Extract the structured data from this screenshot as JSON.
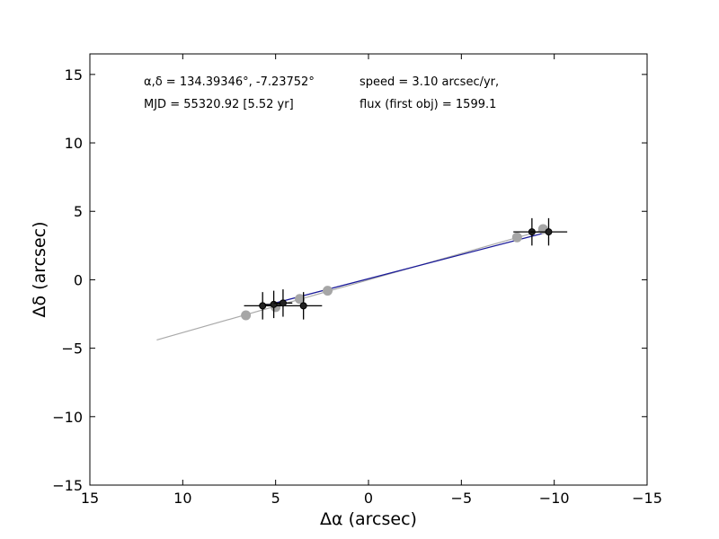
{
  "chart_data": {
    "type": "scatter",
    "title": "",
    "xlabel": "Δα (arcsec)",
    "ylabel": "Δδ (arcsec)",
    "xlim": [
      15,
      -15
    ],
    "ylim": [
      -15,
      16.5
    ],
    "x_reversed": true,
    "grid": false,
    "xticks": [
      15,
      10,
      5,
      0,
      -5,
      -10,
      -15
    ],
    "xtick_labels": [
      "15",
      "10",
      "5",
      "0",
      "−5",
      "−10",
      "−15"
    ],
    "yticks": [
      15,
      10,
      5,
      0,
      -5,
      -10,
      -15
    ],
    "ytick_labels": [
      "15",
      "10",
      "5",
      "0",
      "−5",
      "−10",
      "−15"
    ],
    "annotations": {
      "coords": "α,δ = 134.39346°, -7.23752°",
      "mjd": "MJD = 55320.92 [5.52 yr]",
      "speed": "speed = 3.10 arcsec/yr,",
      "flux": "flux (first obj) = 1599.1"
    },
    "series": [
      {
        "kind": "fit-line-gray",
        "color": "#aaaaaa",
        "x": [
          11.4,
          -9.6
        ],
        "y": [
          -4.4,
          3.7
        ]
      },
      {
        "kind": "fit-line-blue",
        "color": "#1a1a99",
        "x": [
          5.6,
          -9.7
        ],
        "y": [
          -1.9,
          3.5
        ]
      },
      {
        "kind": "predicted-positions",
        "color": "#a6a6a6",
        "x": [
          6.6,
          5.0,
          3.7,
          2.2,
          -8.0,
          -9.4
        ],
        "y": [
          -2.6,
          -2.0,
          -1.4,
          -0.8,
          3.1,
          3.7
        ]
      },
      {
        "kind": "detections",
        "color": "#222222",
        "x": [
          5.7,
          5.1,
          4.6,
          3.5,
          -8.8,
          -9.7
        ],
        "y": [
          -1.9,
          -1.8,
          -1.7,
          -1.9,
          3.5,
          3.5
        ],
        "xerr": [
          1.0,
          0.5,
          0.5,
          1.0,
          1.0,
          1.0
        ],
        "yerr": [
          1.0,
          1.0,
          1.0,
          1.0,
          1.0,
          1.0
        ]
      }
    ]
  }
}
